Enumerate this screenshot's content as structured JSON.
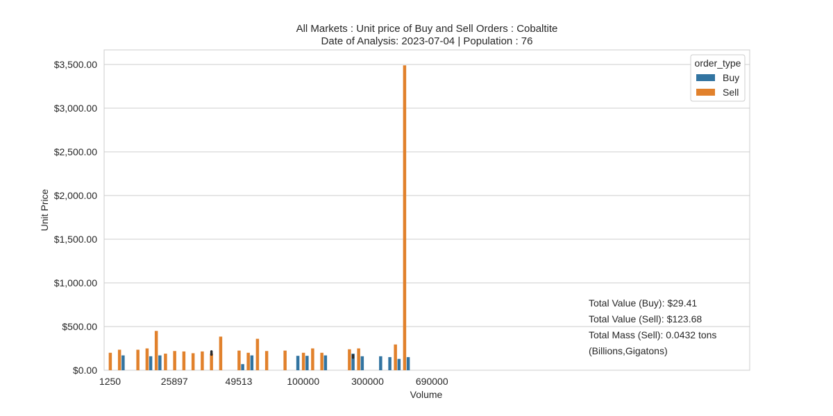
{
  "chart_data": {
    "type": "bar",
    "title_line1": "All Markets : Unit price of Buy and Sell Orders : Cobaltite",
    "title_line2": "Date of Analysis: 2023-07-04 | Population : 76",
    "xlabel": "Volume",
    "ylabel": "Unit Price",
    "ylim": [
      0,
      3650
    ],
    "yticks": [
      {
        "value": 0,
        "label": "$0.00"
      },
      {
        "value": 500,
        "label": "$500.00"
      },
      {
        "value": 1000,
        "label": "$1,000.00"
      },
      {
        "value": 1500,
        "label": "$1,500.00"
      },
      {
        "value": 2000,
        "label": "$2,000.00"
      },
      {
        "value": 2500,
        "label": "$2,500.00"
      },
      {
        "value": 3000,
        "label": "$3,000.00"
      },
      {
        "value": 3500,
        "label": "$3,500.00"
      }
    ],
    "xtick_labels": [
      {
        "index": 0,
        "label": "1250"
      },
      {
        "index": 7,
        "label": "25897"
      },
      {
        "index": 14,
        "label": "49513"
      },
      {
        "index": 21,
        "label": "100000"
      },
      {
        "index": 28,
        "label": "300000"
      },
      {
        "index": 35,
        "label": "690000"
      }
    ],
    "category_count": 37,
    "grid": true,
    "legend": {
      "title": "order_type",
      "position": "top-right",
      "entries": [
        {
          "name": "Buy",
          "color": "#3274a1"
        },
        {
          "name": "Sell",
          "color": "#e1812c"
        }
      ]
    },
    "series": [
      {
        "name": "Buy",
        "color": "#3274a1",
        "points": [
          {
            "index": 1,
            "value": 170
          },
          {
            "index": 4,
            "value": 160
          },
          {
            "index": 5,
            "value": 170
          },
          {
            "index": 14,
            "value": 70
          },
          {
            "index": 15,
            "value": 170
          },
          {
            "index": 20,
            "value": 165
          },
          {
            "index": 21,
            "value": 165
          },
          {
            "index": 23,
            "value": 170
          },
          {
            "index": 26,
            "value": 190
          },
          {
            "index": 27,
            "value": 160
          },
          {
            "index": 29,
            "value": 160
          },
          {
            "index": 30,
            "value": 150
          },
          {
            "index": 31,
            "value": 130
          },
          {
            "index": 32,
            "value": 150
          }
        ]
      },
      {
        "name": "Sell",
        "color": "#e1812c",
        "points": [
          {
            "index": 0,
            "value": 200
          },
          {
            "index": 1,
            "value": 235
          },
          {
            "index": 3,
            "value": 235
          },
          {
            "index": 4,
            "value": 250
          },
          {
            "index": 5,
            "value": 450
          },
          {
            "index": 6,
            "value": 190
          },
          {
            "index": 7,
            "value": 220
          },
          {
            "index": 8,
            "value": 215
          },
          {
            "index": 9,
            "value": 195
          },
          {
            "index": 10,
            "value": 215
          },
          {
            "index": 11,
            "value": 190
          },
          {
            "index": 12,
            "value": 385
          },
          {
            "index": 14,
            "value": 225
          },
          {
            "index": 15,
            "value": 200
          },
          {
            "index": 16,
            "value": 360
          },
          {
            "index": 17,
            "value": 220
          },
          {
            "index": 19,
            "value": 225
          },
          {
            "index": 21,
            "value": 200
          },
          {
            "index": 22,
            "value": 250
          },
          {
            "index": 23,
            "value": 200
          },
          {
            "index": 26,
            "value": 240
          },
          {
            "index": 27,
            "value": 250
          },
          {
            "index": 31,
            "value": 295
          },
          {
            "index": 32,
            "value": 3490
          }
        ]
      }
    ],
    "error_marks": [
      {
        "series": "Sell",
        "index": 11,
        "low": 180,
        "high": 215
      },
      {
        "series": "Buy",
        "index": 26,
        "low": 145,
        "high": 170
      }
    ],
    "annotations": [
      "Total Value (Buy): $29.41",
      "Total Value (Sell): $123.68",
      "Total Mass (Sell): 0.0432 tons",
      "(Billions,Gigatons)"
    ]
  }
}
